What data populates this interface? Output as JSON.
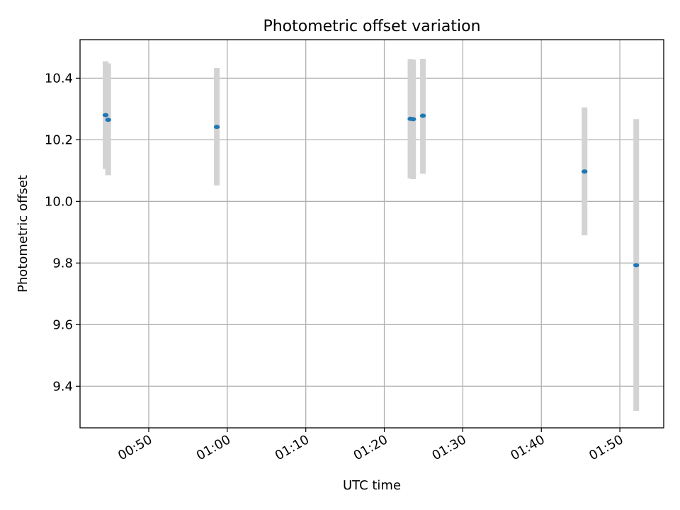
{
  "chart_data": {
    "type": "scatter",
    "title": "Photometric offset variation",
    "xlabel": "UTC time",
    "ylabel": "Photometric offset",
    "xlim": [
      "00:41:15",
      "01:55:35"
    ],
    "ylim": [
      9.265,
      10.525
    ],
    "grid": true,
    "x_ticks": [
      "00:50",
      "01:00",
      "01:10",
      "01:20",
      "01:30",
      "01:40",
      "01:50"
    ],
    "y_ticks": [
      "9.4",
      "9.6",
      "9.8",
      "10.0",
      "10.2",
      "10.4"
    ],
    "points": [
      {
        "x": "00:44:30",
        "y": 10.28,
        "yerr_low": 10.105,
        "yerr_high": 10.455
      },
      {
        "x": "00:44:50",
        "y": 10.265,
        "yerr_low": 10.085,
        "yerr_high": 10.448
      },
      {
        "x": "00:58:40",
        "y": 10.242,
        "yerr_low": 10.052,
        "yerr_high": 10.433
      },
      {
        "x": "01:23:20",
        "y": 10.268,
        "yerr_low": 10.075,
        "yerr_high": 10.462
      },
      {
        "x": "01:23:40",
        "y": 10.267,
        "yerr_low": 10.072,
        "yerr_high": 10.46
      },
      {
        "x": "01:24:55",
        "y": 10.278,
        "yerr_low": 10.09,
        "yerr_high": 10.463
      },
      {
        "x": "01:45:30",
        "y": 10.097,
        "yerr_low": 9.89,
        "yerr_high": 10.305
      },
      {
        "x": "01:52:05",
        "y": 9.793,
        "yerr_low": 9.32,
        "yerr_high": 10.267
      }
    ],
    "colors": {
      "marker": "#1f77b4",
      "errorbar": "#d3d3d3",
      "grid": "#b0b0b0",
      "axes": "#000000"
    }
  }
}
